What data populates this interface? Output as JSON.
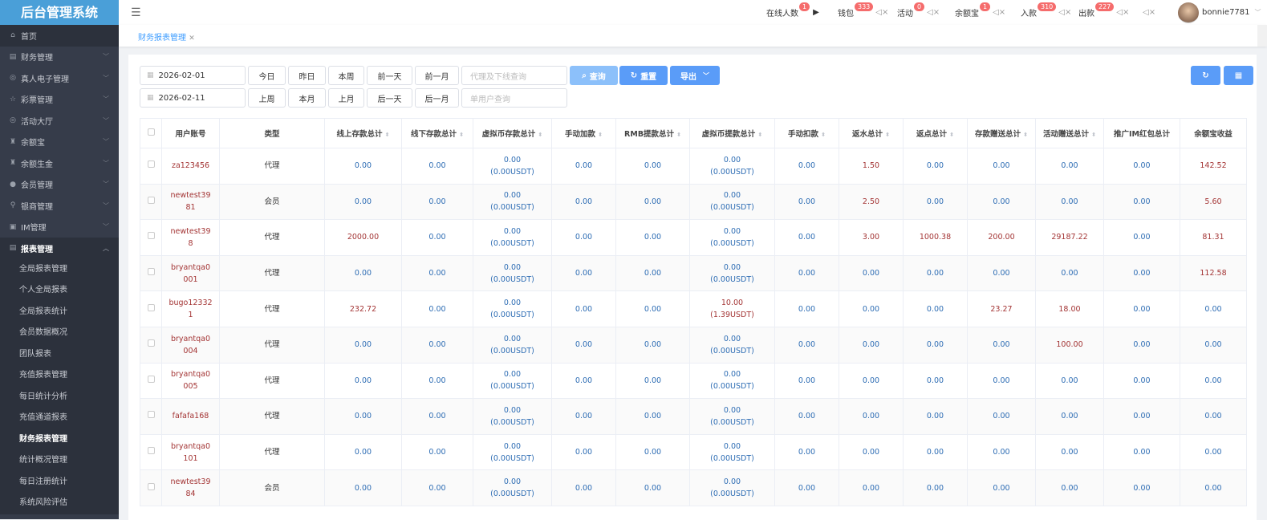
{
  "app": {
    "title": "后台管理系统"
  },
  "sidebar": {
    "items": [
      {
        "label": "首页",
        "icon": "home-icon"
      },
      {
        "label": "财务管理",
        "icon": "finance-icon"
      },
      {
        "label": "真人电子管理",
        "icon": "casino-icon"
      },
      {
        "label": "彩票管理",
        "icon": "star-icon"
      },
      {
        "label": "活动大厅",
        "icon": "activity-icon"
      },
      {
        "label": "余额宝",
        "icon": "vault-icon"
      },
      {
        "label": "余额生金",
        "icon": "vault-icon"
      },
      {
        "label": "会员管理",
        "icon": "user-icon"
      },
      {
        "label": "银商管理",
        "icon": "merchant-icon"
      },
      {
        "label": "IM管理",
        "icon": "chat-icon"
      }
    ],
    "open": {
      "label": "报表管理",
      "icon": "report-icon",
      "children": [
        "全局报表管理",
        "个人全局报表",
        "全局报表统计",
        "会员数据概况",
        "团队报表",
        "充值报表管理",
        "每日统计分析",
        "充值通道报表",
        "财务报表管理",
        "统计概况管理",
        "每日注册统计",
        "系统风险评估"
      ],
      "active": "财务报表管理"
    }
  },
  "topnav": {
    "items": [
      {
        "label": "在线人数",
        "badge": "1"
      },
      {
        "label": "钱包",
        "badge": "333"
      },
      {
        "label": "活动",
        "badge": "0"
      },
      {
        "label": "余额宝",
        "badge": "1"
      },
      {
        "label": "入款",
        "badge": "310"
      },
      {
        "label": "出款",
        "badge": "227"
      }
    ],
    "user": "bonnie7781"
  },
  "tabs": [
    {
      "label": "财务报表管理"
    }
  ],
  "filters": {
    "start_date": "2026-02-01",
    "end_date": "2026-02-11",
    "quick_row1": [
      "今日",
      "昨日",
      "本周",
      "前一天",
      "前一月"
    ],
    "quick_row2": [
      "上周",
      "本月",
      "上月",
      "后一天",
      "后一月"
    ],
    "agent_placeholder": "代理及下线查询",
    "user_placeholder": "单用户查询",
    "search": "查询",
    "reset": "重置",
    "export": "导出"
  },
  "colors": {
    "accent": "#5a9cf8",
    "positive": "#a33434",
    "zero": "#2e6db4",
    "badge": "#f56c6c"
  },
  "table": {
    "columns": [
      {
        "label": "用户账号",
        "w": 72
      },
      {
        "label": "类型",
        "w": 131
      },
      {
        "label": "线上存款总计",
        "w": 96,
        "sort": true
      },
      {
        "label": "线下存款总计",
        "w": 89,
        "sort": true
      },
      {
        "label": "虚拟币存款总计",
        "w": 98,
        "sort": true
      },
      {
        "label": "手动加款",
        "w": 80,
        "sort": true
      },
      {
        "label": "RMB提款总计",
        "w": 92,
        "sort": true
      },
      {
        "label": "虚拟币提款总计",
        "w": 106,
        "sort": true
      },
      {
        "label": "手动扣款",
        "w": 80,
        "sort": true
      },
      {
        "label": "返水总计",
        "w": 80,
        "sort": true
      },
      {
        "label": "返点总计",
        "w": 80,
        "sort": true
      },
      {
        "label": "存款赠送总计",
        "w": 85,
        "sort": true
      },
      {
        "label": "活动赠送总计",
        "w": 85,
        "sort": true
      },
      {
        "label": "推广IM红包总计",
        "w": 95
      },
      {
        "label": "余额宝收益",
        "w": 83
      }
    ],
    "rows": [
      {
        "user": "za123456",
        "type": "代理",
        "v": [
          "0.00",
          "0.00",
          [
            "0.00",
            "(0.00USDT)"
          ],
          "0.00",
          "0.00",
          [
            "0.00",
            "(0.00USDT)"
          ],
          "0.00",
          "1.50",
          "0.00",
          "0.00",
          "0.00",
          "0.00",
          "142.52"
        ]
      },
      {
        "user": "newtest3981",
        "type": "会员",
        "v": [
          "0.00",
          "0.00",
          [
            "0.00",
            "(0.00USDT)"
          ],
          "0.00",
          "0.00",
          [
            "0.00",
            "(0.00USDT)"
          ],
          "0.00",
          "2.50",
          "0.00",
          "0.00",
          "0.00",
          "0.00",
          "5.60"
        ]
      },
      {
        "user": "newtest398",
        "type": "代理",
        "v": [
          "2000.00",
          "0.00",
          [
            "0.00",
            "(0.00USDT)"
          ],
          "0.00",
          "0.00",
          [
            "0.00",
            "(0.00USDT)"
          ],
          "0.00",
          "3.00",
          "1000.38",
          "200.00",
          "29187.22",
          "0.00",
          "81.31"
        ]
      },
      {
        "user": "bryantqa0001",
        "type": "代理",
        "v": [
          "0.00",
          "0.00",
          [
            "0.00",
            "(0.00USDT)"
          ],
          "0.00",
          "0.00",
          [
            "0.00",
            "(0.00USDT)"
          ],
          "0.00",
          "0.00",
          "0.00",
          "0.00",
          "0.00",
          "0.00",
          "112.58"
        ]
      },
      {
        "user": "bugo123321",
        "type": "代理",
        "v": [
          "232.72",
          "0.00",
          [
            "0.00",
            "(0.00USDT)"
          ],
          "0.00",
          "0.00",
          [
            "10.00",
            "(1.39USDT)"
          ],
          "0.00",
          "0.00",
          "0.00",
          "23.27",
          "18.00",
          "0.00",
          "0.00"
        ]
      },
      {
        "user": "bryantqa0004",
        "type": "代理",
        "v": [
          "0.00",
          "0.00",
          [
            "0.00",
            "(0.00USDT)"
          ],
          "0.00",
          "0.00",
          [
            "0.00",
            "(0.00USDT)"
          ],
          "0.00",
          "0.00",
          "0.00",
          "0.00",
          "100.00",
          "0.00",
          "0.00"
        ]
      },
      {
        "user": "bryantqa0005",
        "type": "代理",
        "v": [
          "0.00",
          "0.00",
          [
            "0.00",
            "(0.00USDT)"
          ],
          "0.00",
          "0.00",
          [
            "0.00",
            "(0.00USDT)"
          ],
          "0.00",
          "0.00",
          "0.00",
          "0.00",
          "0.00",
          "0.00",
          "0.00"
        ]
      },
      {
        "user": "fafafa168",
        "type": "代理",
        "v": [
          "0.00",
          "0.00",
          [
            "0.00",
            "(0.00USDT)"
          ],
          "0.00",
          "0.00",
          [
            "0.00",
            "(0.00USDT)"
          ],
          "0.00",
          "0.00",
          "0.00",
          "0.00",
          "0.00",
          "0.00",
          "0.00"
        ]
      },
      {
        "user": "bryantqa0101",
        "type": "代理",
        "v": [
          "0.00",
          "0.00",
          [
            "0.00",
            "(0.00USDT)"
          ],
          "0.00",
          "0.00",
          [
            "0.00",
            "(0.00USDT)"
          ],
          "0.00",
          "0.00",
          "0.00",
          "0.00",
          "0.00",
          "0.00",
          "0.00"
        ]
      },
      {
        "user": "newtest3984",
        "type": "会员",
        "v": [
          "0.00",
          "0.00",
          [
            "0.00",
            "(0.00USDT)"
          ],
          "0.00",
          "0.00",
          [
            "0.00",
            "(0.00USDT)"
          ],
          "0.00",
          "0.00",
          "0.00",
          "0.00",
          "0.00",
          "0.00",
          "0.00"
        ]
      }
    ]
  }
}
